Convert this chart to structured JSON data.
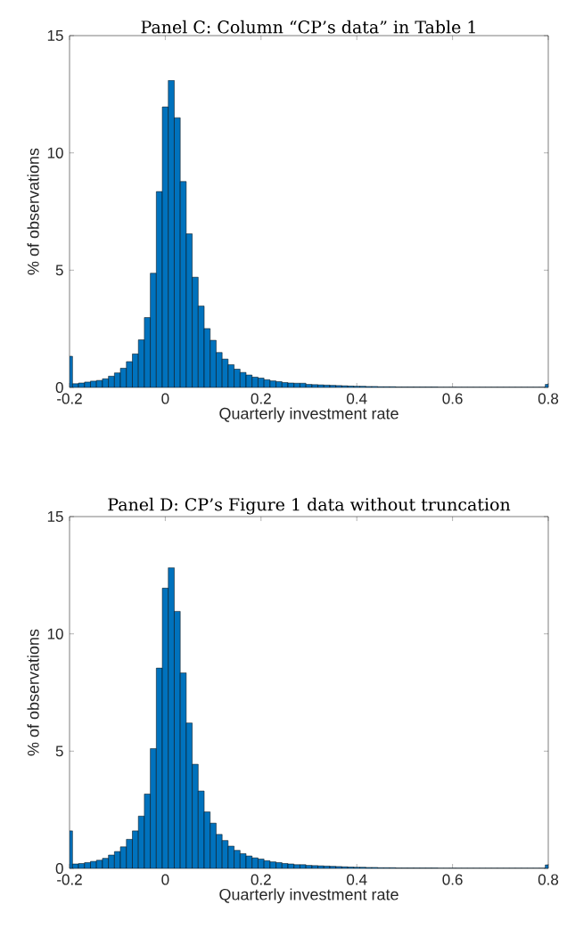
{
  "chart_data": [
    {
      "type": "histogram",
      "title": "Panel C: Column “CP’s data” in Table 1",
      "xlabel": "Quarterly investment rate",
      "ylabel": "% of observations",
      "color": "#0072bd",
      "bins": [
        -0.2,
        -0.19375,
        -0.18125,
        -0.16875,
        -0.15625,
        -0.14375,
        -0.13125,
        -0.11875,
        -0.10625,
        -0.09375,
        -0.08125,
        -0.06875,
        -0.05625,
        -0.04375,
        -0.03125,
        -0.01875,
        -0.00625,
        0.00625,
        0.01875,
        0.03125,
        0.04375,
        0.05625,
        0.06875,
        0.08125,
        0.09375,
        0.10625,
        0.11875,
        0.13125,
        0.14375,
        0.15625,
        0.16875,
        0.18125,
        0.19375,
        0.20625,
        0.21875,
        0.23125,
        0.24375,
        0.25625,
        0.26875,
        0.28125,
        0.29375,
        0.30625,
        0.31875,
        0.33125,
        0.34375,
        0.35625,
        0.36875,
        0.38125,
        0.39375,
        0.40625,
        0.41875,
        0.43125,
        0.44375,
        0.45625,
        0.46875,
        0.48125,
        0.49375,
        0.50625,
        0.51875,
        0.53125,
        0.54375,
        0.55625,
        0.56875,
        0.58125,
        0.59375,
        0.60625,
        0.61875,
        0.63125,
        0.64375,
        0.65625,
        0.66875,
        0.68125,
        0.69375,
        0.70625,
        0.71875,
        0.73125,
        0.74375,
        0.75625,
        0.76875,
        0.78125,
        0.79375,
        0.8
      ],
      "values": [
        1.33,
        0.16,
        0.19,
        0.23,
        0.27,
        0.3,
        0.37,
        0.48,
        0.62,
        0.82,
        1.1,
        1.43,
        2.03,
        2.98,
        4.87,
        8.35,
        11.96,
        13.09,
        11.5,
        8.78,
        6.55,
        4.7,
        3.47,
        2.51,
        2.01,
        1.49,
        1.21,
        0.97,
        0.78,
        0.64,
        0.53,
        0.44,
        0.4,
        0.33,
        0.28,
        0.25,
        0.21,
        0.19,
        0.18,
        0.18,
        0.13,
        0.12,
        0.11,
        0.1,
        0.09,
        0.08,
        0.07,
        0.06,
        0.05,
        0.05,
        0.04,
        0.04,
        0.03,
        0.03,
        0.03,
        0.02,
        0.02,
        0.02,
        0.02,
        0.02,
        0.02,
        0.02,
        0.01,
        0.01,
        0.01,
        0.01,
        0.01,
        0.01,
        0.01,
        0.01,
        0.01,
        0.01,
        0.01,
        0.01,
        0.01,
        0.01,
        0.01,
        0.01,
        0.01,
        0.01,
        0.13
      ],
      "xlim": [
        -0.2,
        0.8
      ],
      "ylim": [
        0,
        15
      ],
      "xticks": [
        -0.2,
        0,
        0.2,
        0.4,
        0.6,
        0.8
      ],
      "yticks": [
        0,
        5,
        10,
        15
      ]
    },
    {
      "type": "histogram",
      "title": "Panel D: CP’s Figure 1 data without truncation",
      "xlabel": "Quarterly investment rate",
      "ylabel": "% of observations",
      "color": "#0072bd",
      "bins": [
        -0.2,
        -0.19375,
        -0.18125,
        -0.16875,
        -0.15625,
        -0.14375,
        -0.13125,
        -0.11875,
        -0.10625,
        -0.09375,
        -0.08125,
        -0.06875,
        -0.05625,
        -0.04375,
        -0.03125,
        -0.01875,
        -0.00625,
        0.00625,
        0.01875,
        0.03125,
        0.04375,
        0.05625,
        0.06875,
        0.08125,
        0.09375,
        0.10625,
        0.11875,
        0.13125,
        0.14375,
        0.15625,
        0.16875,
        0.18125,
        0.19375,
        0.20625,
        0.21875,
        0.23125,
        0.24375,
        0.25625,
        0.26875,
        0.28125,
        0.29375,
        0.30625,
        0.31875,
        0.33125,
        0.34375,
        0.35625,
        0.36875,
        0.38125,
        0.39375,
        0.40625,
        0.41875,
        0.43125,
        0.44375,
        0.45625,
        0.46875,
        0.48125,
        0.49375,
        0.50625,
        0.51875,
        0.53125,
        0.54375,
        0.55625,
        0.56875,
        0.58125,
        0.59375,
        0.60625,
        0.61875,
        0.63125,
        0.64375,
        0.65625,
        0.66875,
        0.68125,
        0.69375,
        0.70625,
        0.71875,
        0.73125,
        0.74375,
        0.75625,
        0.76875,
        0.78125,
        0.79375,
        0.8
      ],
      "values": [
        1.6,
        0.19,
        0.21,
        0.25,
        0.3,
        0.35,
        0.43,
        0.57,
        0.72,
        0.92,
        1.24,
        1.6,
        2.23,
        3.17,
        5.11,
        8.54,
        11.95,
        12.82,
        10.96,
        8.34,
        6.2,
        4.44,
        3.3,
        2.41,
        1.93,
        1.45,
        1.19,
        0.95,
        0.77,
        0.63,
        0.53,
        0.45,
        0.4,
        0.33,
        0.28,
        0.25,
        0.21,
        0.19,
        0.16,
        0.16,
        0.13,
        0.12,
        0.11,
        0.1,
        0.09,
        0.08,
        0.07,
        0.06,
        0.05,
        0.05,
        0.04,
        0.04,
        0.03,
        0.03,
        0.03,
        0.02,
        0.02,
        0.02,
        0.02,
        0.02,
        0.02,
        0.02,
        0.01,
        0.01,
        0.01,
        0.01,
        0.01,
        0.01,
        0.01,
        0.01,
        0.01,
        0.01,
        0.01,
        0.01,
        0.01,
        0.01,
        0.01,
        0.01,
        0.01,
        0.01,
        0.15
      ],
      "xlim": [
        -0.2,
        0.8
      ],
      "ylim": [
        0,
        15
      ],
      "xticks": [
        -0.2,
        0,
        0.2,
        0.4,
        0.6,
        0.8
      ],
      "yticks": [
        0,
        5,
        10,
        15
      ]
    }
  ]
}
